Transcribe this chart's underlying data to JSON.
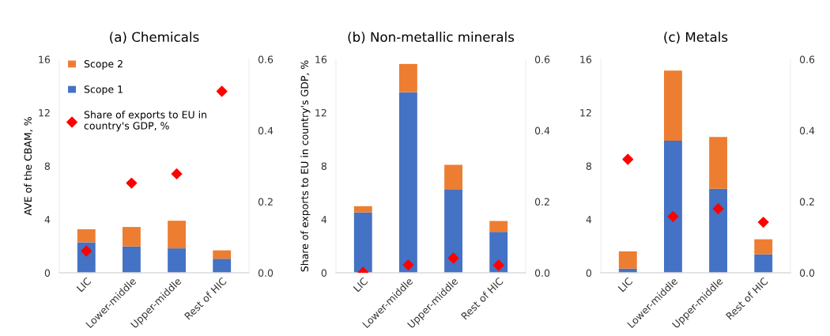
{
  "chart_data": [
    {
      "type": "bar",
      "title": "(a) Chemicals",
      "ylabel": "AVE of the CBAM, %",
      "categories": [
        "LIC",
        "Lower-middle",
        "Upper-middle",
        "Rest of HIC"
      ],
      "stacked": true,
      "legend": "top left",
      "ylim": [
        0,
        16
      ],
      "yticks": [
        0,
        4,
        8,
        12,
        16
      ],
      "y2lim": [
        0,
        0.6
      ],
      "y2ticks": [
        {
          "value": 0,
          "label": "0.0"
        },
        {
          "value": 0.2,
          "label": "0.2"
        },
        {
          "value": 0.4,
          "label": "0.4"
        },
        {
          "value": 0.6,
          "label": "0.6"
        }
      ],
      "grid": false,
      "series": [
        {
          "name": "Scope 1",
          "color": "#4472c4",
          "values": [
            2.28,
            1.97,
            1.83,
            1.05
          ]
        },
        {
          "name": "Scope 2",
          "color": "#ed7d31",
          "values": [
            0.98,
            1.46,
            2.07,
            0.63
          ]
        },
        {
          "name": "Share of exports to EU in country's GDP, %",
          "type": "scatter",
          "axis": "y2",
          "marker": "diamond",
          "color": "#ff0000",
          "values": [
            0.061,
            0.252,
            0.278,
            0.51
          ]
        }
      ]
    },
    {
      "type": "bar",
      "title": "(b) Non-metallic minerals",
      "ylabel": "Share of exports to EU in country's GDP, %",
      "categories": [
        "LIC",
        "Lower-middle",
        "Upper-middle",
        "Rest of HIC"
      ],
      "stacked": true,
      "ylim": [
        0,
        16
      ],
      "yticks": [
        0,
        4,
        8,
        12,
        16
      ],
      "y2lim": [
        0,
        0.6
      ],
      "y2ticks": [
        {
          "value": 0,
          "label": "0.0"
        },
        {
          "value": 0.2,
          "label": "0.2"
        },
        {
          "value": 0.4,
          "label": "0.4"
        },
        {
          "value": 0.6,
          "label": "0.6"
        }
      ],
      "grid": false,
      "series": [
        {
          "color": "#4472c4",
          "values": [
            4.52,
            13.53,
            6.22,
            3.06
          ]
        },
        {
          "color": "#ed7d31",
          "values": [
            0.47,
            2.12,
            1.87,
            0.82
          ]
        },
        {
          "type": "scatter",
          "axis": "y2",
          "marker": "diamond",
          "color": "#ff0000",
          "values": [
            0.001,
            0.022,
            0.041,
            0.021
          ]
        }
      ]
    },
    {
      "type": "bar",
      "title": "(c) Metals",
      "categories": [
        "LIC",
        "Lower-middle",
        "Upper-middle",
        "Rest of HIC"
      ],
      "stacked": true,
      "ylim": [
        0,
        16
      ],
      "yticks": [
        0,
        4,
        8,
        12,
        16
      ],
      "y2lim": [
        0,
        0.6
      ],
      "y2ticks": [
        {
          "value": 0,
          "label": "0.0"
        },
        {
          "value": 0.2,
          "label": "0.2"
        },
        {
          "value": 0.4,
          "label": "0.4"
        },
        {
          "value": 0.6,
          "label": "0.6"
        }
      ],
      "grid": false,
      "series": [
        {
          "color": "#4472c4",
          "values": [
            0.31,
            9.9,
            6.3,
            1.38
          ]
        },
        {
          "color": "#ed7d31",
          "values": [
            1.29,
            5.25,
            3.88,
            1.13
          ]
        },
        {
          "type": "scatter",
          "axis": "y2",
          "marker": "diamond",
          "color": "#ff0000",
          "values": [
            0.319,
            0.158,
            0.18,
            0.142
          ]
        }
      ]
    }
  ]
}
